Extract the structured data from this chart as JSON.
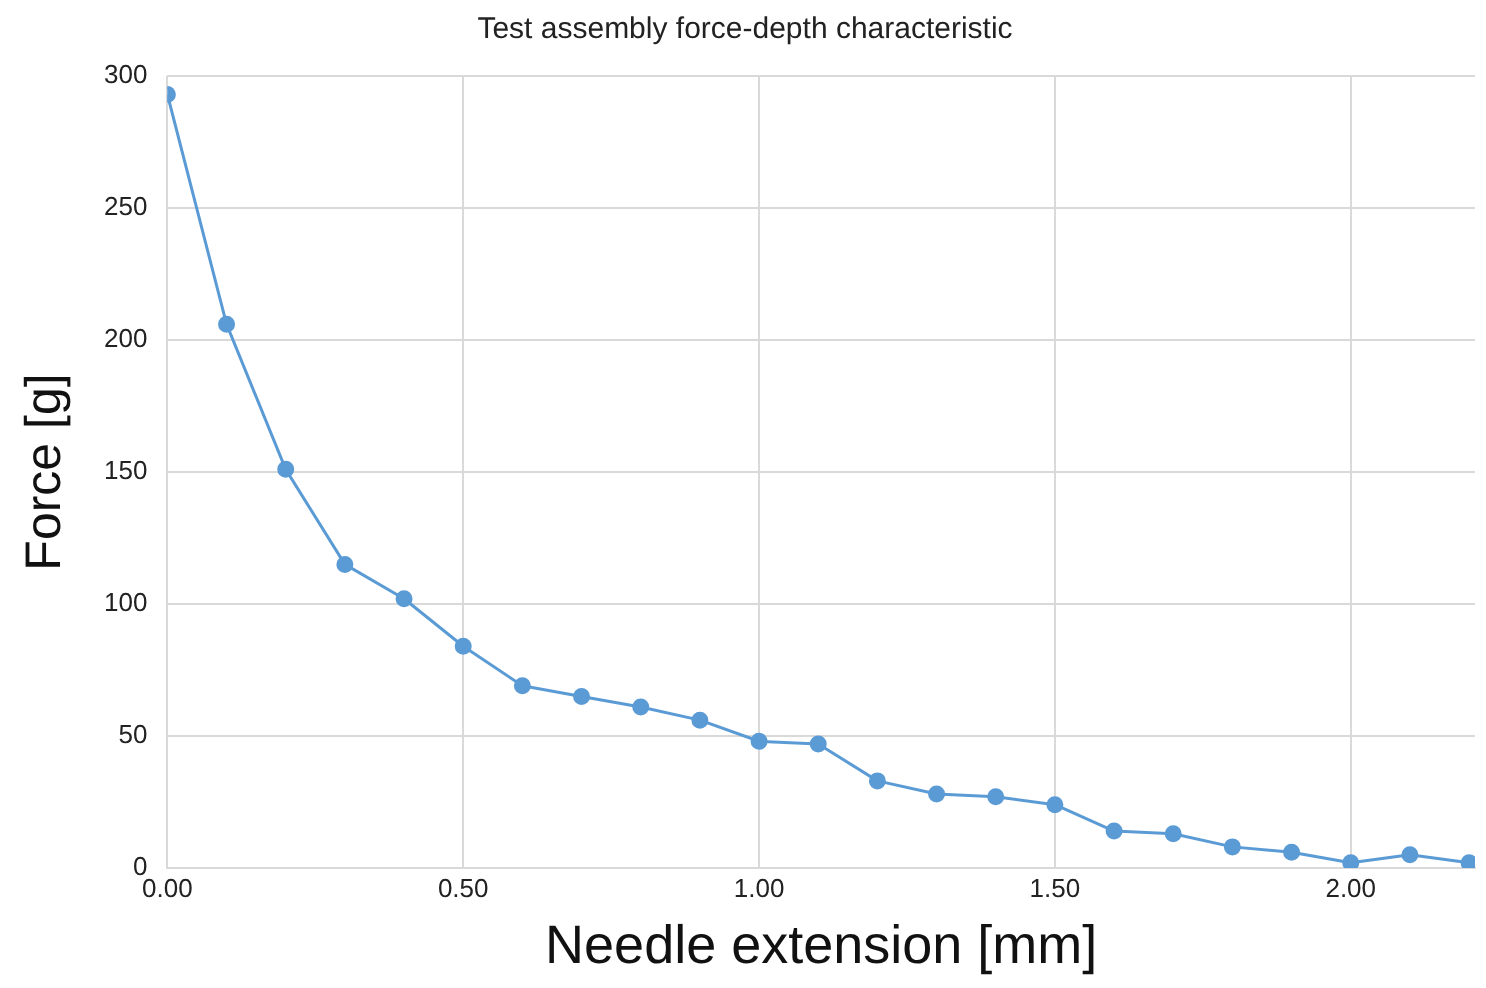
{
  "chart_data": {
    "type": "line",
    "title": "Test assembly force-depth characteristic",
    "xlabel": "Needle extension [mm]",
    "ylabel": "Force [g]",
    "x": [
      0,
      0.1,
      0.2,
      0.3,
      0.4,
      0.5,
      0.6,
      0.7,
      0.8,
      0.9,
      1.0,
      1.1,
      1.2,
      1.3,
      1.4,
      1.5,
      1.6,
      1.7,
      1.8,
      1.9,
      2.0,
      2.1,
      2.2
    ],
    "series": [
      {
        "color": "#5b9bd5",
        "values": [
          293,
          206,
          151,
          115,
          102,
          84,
          69,
          65,
          61,
          56,
          48,
          47,
          33,
          28,
          27,
          24,
          14,
          13,
          8,
          6,
          2,
          5,
          2
        ]
      }
    ],
    "xlim": [
      0,
      2.21
    ],
    "xticks": [
      {
        "value": 0,
        "label": "0.00"
      },
      {
        "value": 0.5,
        "label": "0.50"
      },
      {
        "value": 1,
        "label": "1.00"
      },
      {
        "value": 1.5,
        "label": "1.50"
      },
      {
        "value": 2,
        "label": "2.00"
      }
    ],
    "ylim": [
      0,
      300
    ],
    "yticks": [
      0,
      50,
      100,
      150,
      200,
      250,
      300
    ],
    "grid": true,
    "legend": false,
    "marker": "circle",
    "line_style": "solid"
  }
}
